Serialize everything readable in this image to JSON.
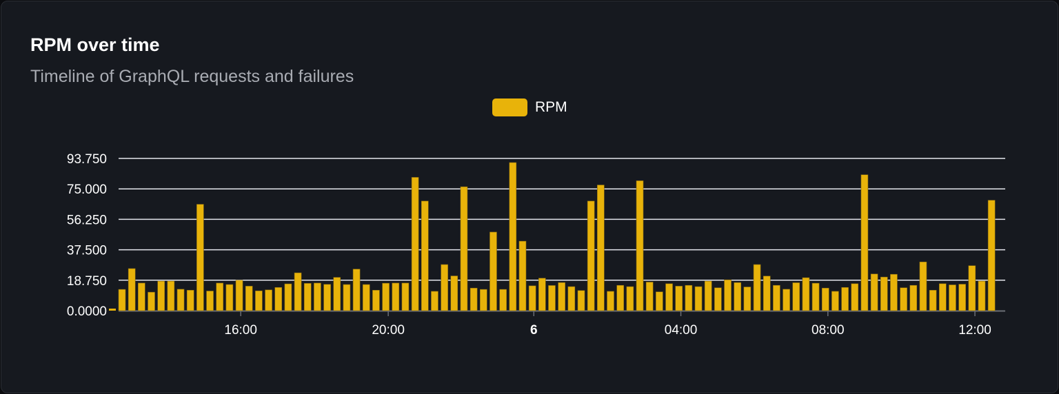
{
  "card": {
    "title": "RPM over time",
    "subtitle": "Timeline of GraphQL requests and failures"
  },
  "chart_data": {
    "type": "bar",
    "series": [
      {
        "name": "RPM",
        "color": "#e8b30a",
        "values": [
          13.1,
          25.9,
          17.0,
          11.4,
          18.2,
          18.2,
          13.2,
          12.6,
          65.5,
          12.1,
          17.0,
          16.1,
          18.75,
          15.1,
          12.2,
          12.8,
          14.3,
          16.5,
          23.3,
          16.8,
          17.0,
          16.2,
          20.5,
          16.1,
          25.6,
          16.1,
          12.6,
          16.9,
          17.0,
          17.0,
          82.1,
          67.5,
          11.9,
          28.4,
          21.4,
          76.3,
          13.9,
          13.1,
          48.4,
          13.1,
          91.2,
          42.8,
          15.3,
          20.0,
          15.5,
          17.3,
          14.8,
          12.4,
          67.5,
          77.4,
          11.9,
          15.6,
          14.8,
          80.0,
          17.6,
          11.6,
          16.6,
          15.1,
          15.6,
          14.8,
          18.2,
          14.1,
          19.0,
          17.3,
          14.6,
          28.4,
          21.3,
          15.6,
          13.2,
          17.2,
          20.3,
          16.9,
          13.9,
          11.9,
          14.3,
          16.6,
          83.7,
          22.6,
          20.7,
          22.4,
          14.1,
          15.6,
          30.0,
          12.6,
          16.6,
          15.9,
          16.3,
          27.7,
          18.2,
          68.0
        ]
      }
    ],
    "ylim": [
      0,
      93.75
    ],
    "yticks": [
      "0.0000",
      "18.750",
      "37.500",
      "56.250",
      "75.000",
      "93.750"
    ],
    "xticks": [
      {
        "label": "16:00",
        "bold": false
      },
      {
        "label": "20:00",
        "bold": false
      },
      {
        "label": "6",
        "bold": true
      },
      {
        "label": "04:00",
        "bold": false
      },
      {
        "label": "08:00",
        "bold": false
      },
      {
        "label": "12:00",
        "bold": false
      }
    ],
    "grid": true,
    "legend": "top-center",
    "xlabel": "",
    "ylabel": ""
  }
}
